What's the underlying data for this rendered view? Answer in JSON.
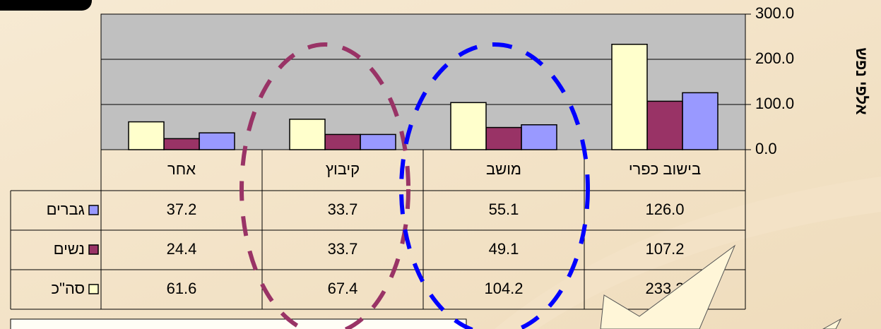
{
  "chart_data": {
    "type": "bar",
    "y_label": "אלפי נפש",
    "categories": [
      "אחר",
      "קיבוץ",
      "מושב",
      "בישוב כפרי"
    ],
    "series": [
      {
        "name": "גברים",
        "color": "#9999ff",
        "values": [
          37.2,
          33.7,
          55.1,
          126.0
        ],
        "value_labels": [
          "37.2",
          "33.7",
          "55.1",
          "126.0"
        ]
      },
      {
        "name": "נשים",
        "color": "#993366",
        "values": [
          24.4,
          33.7,
          49.1,
          107.2
        ],
        "value_labels": [
          "24.4",
          "33.7",
          "49.1",
          "107.2"
        ]
      },
      {
        "name": "סה\"כ",
        "color": "#ffffcc",
        "values": [
          61.6,
          67.4,
          104.2,
          233.2
        ],
        "value_labels": [
          "61.6",
          "67.4",
          "104.2",
          "233.2"
        ]
      }
    ],
    "ylim": [
      0,
      300
    ],
    "yticks": [
      {
        "value": 0,
        "label": "0.0"
      },
      {
        "value": 100,
        "label": "100.0"
      },
      {
        "value": 200,
        "label": "200.0"
      },
      {
        "value": 300,
        "label": "300.0"
      }
    ],
    "grid": true
  }
}
